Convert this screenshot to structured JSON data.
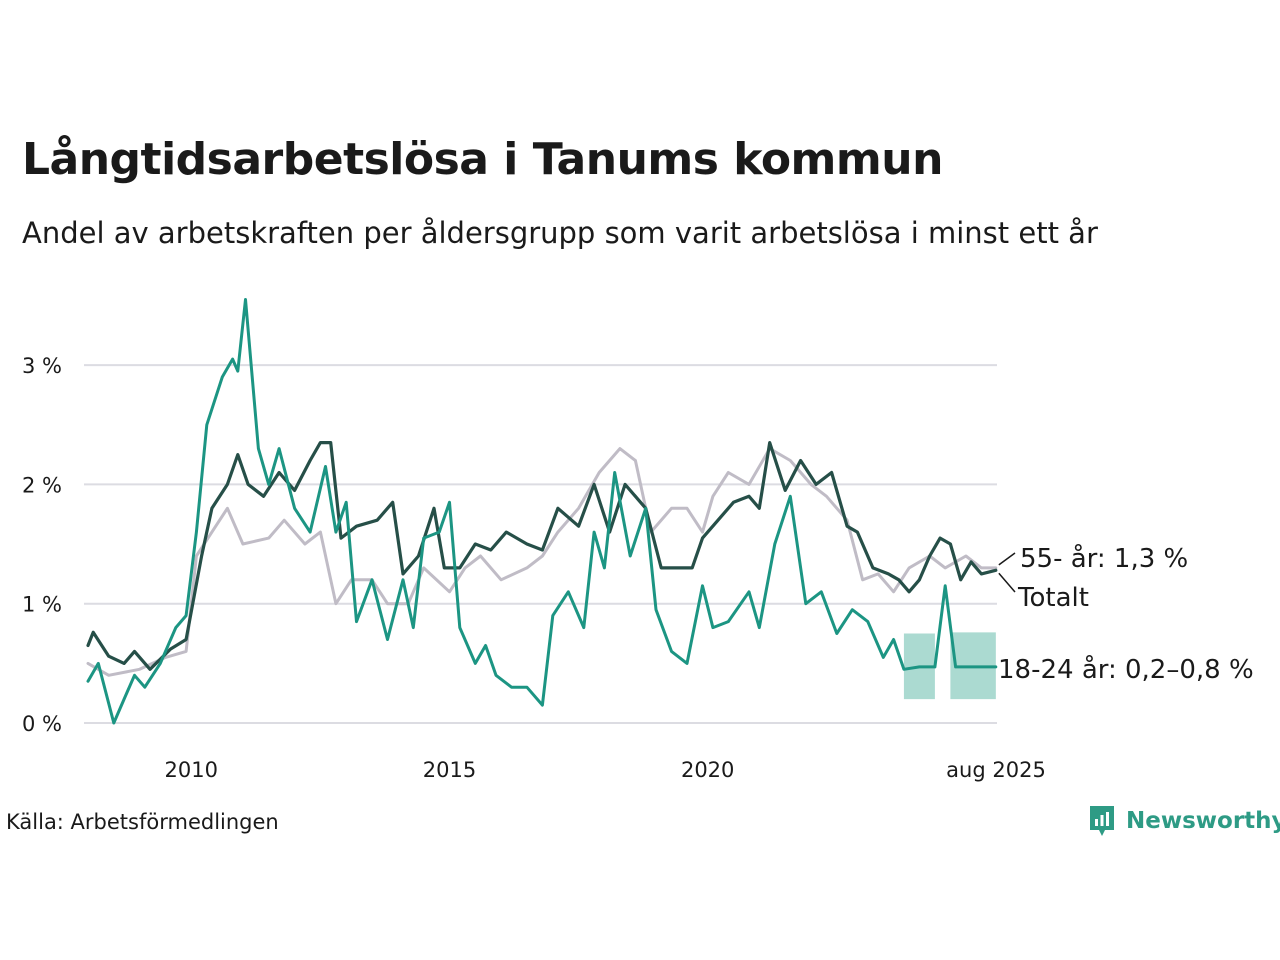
{
  "title": "Långtidsarbetslösa i Tanums kommun",
  "subtitle": "Andel av arbetskraften per åldersgrupp som varit arbetslösa i minst ett år",
  "source": "Källa: Arbetsförmedlingen",
  "brand": {
    "name": "Newsworthy",
    "icon": "newsworthy-logo-icon",
    "color": "#2e9b85"
  },
  "colors": {
    "total": "#264f48",
    "youth": "#1c9583",
    "senior": "#c0bcc6",
    "band": "#a6d8cf",
    "grid": "#dcdce2"
  },
  "chart_data": {
    "type": "line",
    "x_axis": {
      "tick_labels": [
        "2010",
        "2015",
        "2020",
        "aug 2025"
      ],
      "tick_values": [
        2010,
        2015,
        2020,
        2025.583
      ]
    },
    "y_axis": {
      "tick_labels": [
        "0 %",
        "1 %",
        "2 %",
        "3 %"
      ],
      "tick_values": [
        0,
        1,
        2,
        3
      ],
      "range": [
        0,
        3.6
      ]
    },
    "grid": true,
    "series": [
      {
        "name": "55- år",
        "key": "senior",
        "label": "55- år: 1,3 %",
        "points": [
          [
            2008.0,
            0.5
          ],
          [
            2008.4,
            0.4
          ],
          [
            2009.0,
            0.45
          ],
          [
            2009.5,
            0.55
          ],
          [
            2009.9,
            0.6
          ],
          [
            2010.1,
            1.4
          ],
          [
            2010.4,
            1.6
          ],
          [
            2010.7,
            1.8
          ],
          [
            2011.0,
            1.5
          ],
          [
            2011.5,
            1.55
          ],
          [
            2011.8,
            1.7
          ],
          [
            2012.2,
            1.5
          ],
          [
            2012.5,
            1.6
          ],
          [
            2012.8,
            1.0
          ],
          [
            2013.1,
            1.2
          ],
          [
            2013.5,
            1.2
          ],
          [
            2013.8,
            1.0
          ],
          [
            2014.2,
            1.0
          ],
          [
            2014.5,
            1.3
          ],
          [
            2015.0,
            1.1
          ],
          [
            2015.3,
            1.3
          ],
          [
            2015.6,
            1.4
          ],
          [
            2016.0,
            1.2
          ],
          [
            2016.5,
            1.3
          ],
          [
            2016.8,
            1.4
          ],
          [
            2017.1,
            1.6
          ],
          [
            2017.5,
            1.8
          ],
          [
            2017.9,
            2.1
          ],
          [
            2018.3,
            2.3
          ],
          [
            2018.6,
            2.2
          ],
          [
            2018.9,
            1.6
          ],
          [
            2019.3,
            1.8
          ],
          [
            2019.6,
            1.8
          ],
          [
            2019.9,
            1.6
          ],
          [
            2020.1,
            1.9
          ],
          [
            2020.4,
            2.1
          ],
          [
            2020.8,
            2.0
          ],
          [
            2021.2,
            2.3
          ],
          [
            2021.6,
            2.2
          ],
          [
            2022.0,
            2.0
          ],
          [
            2022.3,
            1.9
          ],
          [
            2022.7,
            1.7
          ],
          [
            2023.0,
            1.2
          ],
          [
            2023.3,
            1.25
          ],
          [
            2023.6,
            1.1
          ],
          [
            2023.9,
            1.3
          ],
          [
            2024.3,
            1.4
          ],
          [
            2024.6,
            1.3
          ],
          [
            2025.0,
            1.4
          ],
          [
            2025.3,
            1.3
          ],
          [
            2025.58,
            1.3
          ]
        ]
      },
      {
        "name": "Totalt",
        "key": "total",
        "label": "Totalt",
        "points": [
          [
            2008.0,
            0.65
          ],
          [
            2008.1,
            0.76
          ],
          [
            2008.4,
            0.56
          ],
          [
            2008.7,
            0.5
          ],
          [
            2008.9,
            0.6
          ],
          [
            2009.2,
            0.45
          ],
          [
            2009.6,
            0.62
          ],
          [
            2009.9,
            0.7
          ],
          [
            2010.2,
            1.4
          ],
          [
            2010.4,
            1.8
          ],
          [
            2010.7,
            2.0
          ],
          [
            2010.9,
            2.25
          ],
          [
            2011.1,
            2.0
          ],
          [
            2011.4,
            1.9
          ],
          [
            2011.7,
            2.1
          ],
          [
            2012.0,
            1.95
          ],
          [
            2012.3,
            2.2
          ],
          [
            2012.5,
            2.35
          ],
          [
            2012.7,
            2.35
          ],
          [
            2012.9,
            1.55
          ],
          [
            2013.2,
            1.65
          ],
          [
            2013.6,
            1.7
          ],
          [
            2013.9,
            1.85
          ],
          [
            2014.1,
            1.25
          ],
          [
            2014.4,
            1.4
          ],
          [
            2014.7,
            1.8
          ],
          [
            2014.9,
            1.3
          ],
          [
            2015.2,
            1.3
          ],
          [
            2015.5,
            1.5
          ],
          [
            2015.8,
            1.45
          ],
          [
            2016.1,
            1.6
          ],
          [
            2016.5,
            1.5
          ],
          [
            2016.8,
            1.45
          ],
          [
            2017.1,
            1.8
          ],
          [
            2017.5,
            1.65
          ],
          [
            2017.8,
            2.0
          ],
          [
            2018.1,
            1.6
          ],
          [
            2018.4,
            2.0
          ],
          [
            2018.8,
            1.8
          ],
          [
            2019.1,
            1.3
          ],
          [
            2019.4,
            1.3
          ],
          [
            2019.7,
            1.3
          ],
          [
            2019.9,
            1.55
          ],
          [
            2020.2,
            1.7
          ],
          [
            2020.5,
            1.85
          ],
          [
            2020.8,
            1.9
          ],
          [
            2021.0,
            1.8
          ],
          [
            2021.2,
            2.35
          ],
          [
            2021.5,
            1.95
          ],
          [
            2021.8,
            2.2
          ],
          [
            2022.1,
            2.0
          ],
          [
            2022.4,
            2.1
          ],
          [
            2022.7,
            1.65
          ],
          [
            2022.9,
            1.6
          ],
          [
            2023.2,
            1.3
          ],
          [
            2023.5,
            1.25
          ],
          [
            2023.7,
            1.2
          ],
          [
            2023.9,
            1.1
          ],
          [
            2024.1,
            1.2
          ],
          [
            2024.3,
            1.4
          ],
          [
            2024.5,
            1.55
          ],
          [
            2024.7,
            1.5
          ],
          [
            2024.9,
            1.2
          ],
          [
            2025.1,
            1.35
          ],
          [
            2025.3,
            1.25
          ],
          [
            2025.58,
            1.28
          ]
        ]
      },
      {
        "name": "18-24 år",
        "key": "youth",
        "label": "18-24 år: 0,2–0,8 %",
        "points": [
          [
            2008.0,
            0.35
          ],
          [
            2008.2,
            0.5
          ],
          [
            2008.5,
            0.0
          ],
          [
            2008.7,
            0.2
          ],
          [
            2008.9,
            0.4
          ],
          [
            2009.1,
            0.3
          ],
          [
            2009.4,
            0.5
          ],
          [
            2009.7,
            0.8
          ],
          [
            2009.9,
            0.9
          ],
          [
            2010.1,
            1.6
          ],
          [
            2010.3,
            2.5
          ],
          [
            2010.6,
            2.9
          ],
          [
            2010.8,
            3.05
          ],
          [
            2010.9,
            2.95
          ],
          [
            2011.05,
            3.55
          ],
          [
            2011.3,
            2.3
          ],
          [
            2011.5,
            2.0
          ],
          [
            2011.7,
            2.3
          ],
          [
            2012.0,
            1.8
          ],
          [
            2012.3,
            1.6
          ],
          [
            2012.6,
            2.15
          ],
          [
            2012.8,
            1.6
          ],
          [
            2013.0,
            1.85
          ],
          [
            2013.2,
            0.85
          ],
          [
            2013.5,
            1.2
          ],
          [
            2013.8,
            0.7
          ],
          [
            2014.1,
            1.2
          ],
          [
            2014.3,
            0.8
          ],
          [
            2014.5,
            1.55
          ],
          [
            2014.8,
            1.6
          ],
          [
            2015.0,
            1.85
          ],
          [
            2015.2,
            0.8
          ],
          [
            2015.5,
            0.5
          ],
          [
            2015.7,
            0.65
          ],
          [
            2015.9,
            0.4
          ],
          [
            2016.2,
            0.3
          ],
          [
            2016.5,
            0.3
          ],
          [
            2016.8,
            0.15
          ],
          [
            2017.0,
            0.9
          ],
          [
            2017.3,
            1.1
          ],
          [
            2017.6,
            0.8
          ],
          [
            2017.8,
            1.6
          ],
          [
            2018.0,
            1.3
          ],
          [
            2018.2,
            2.1
          ],
          [
            2018.5,
            1.4
          ],
          [
            2018.8,
            1.8
          ],
          [
            2019.0,
            0.95
          ],
          [
            2019.3,
            0.6
          ],
          [
            2019.6,
            0.5
          ],
          [
            2019.9,
            1.15
          ],
          [
            2020.1,
            0.8
          ],
          [
            2020.4,
            0.85
          ],
          [
            2020.8,
            1.1
          ],
          [
            2021.0,
            0.8
          ],
          [
            2021.3,
            1.5
          ],
          [
            2021.6,
            1.9
          ],
          [
            2021.9,
            1.0
          ],
          [
            2022.2,
            1.1
          ],
          [
            2022.5,
            0.75
          ],
          [
            2022.8,
            0.95
          ],
          [
            2023.1,
            0.85
          ],
          [
            2023.4,
            0.55
          ],
          [
            2023.6,
            0.7
          ],
          [
            2023.8,
            0.45
          ],
          [
            2024.1,
            0.47
          ],
          [
            2024.4,
            0.47
          ],
          [
            2024.6,
            1.15
          ],
          [
            2024.8,
            0.47
          ],
          [
            2025.2,
            0.47
          ],
          [
            2025.58,
            0.47
          ]
        ],
        "uncertainty_band": [
          [
            2023.8,
            0.2,
            0.75
          ],
          [
            2024.4,
            0.2,
            0.75
          ],
          [
            2024.55,
            0.2,
            0.75
          ],
          [
            2024.7,
            0.2,
            0.76
          ],
          [
            2025.58,
            0.2,
            0.76
          ]
        ]
      }
    ]
  }
}
